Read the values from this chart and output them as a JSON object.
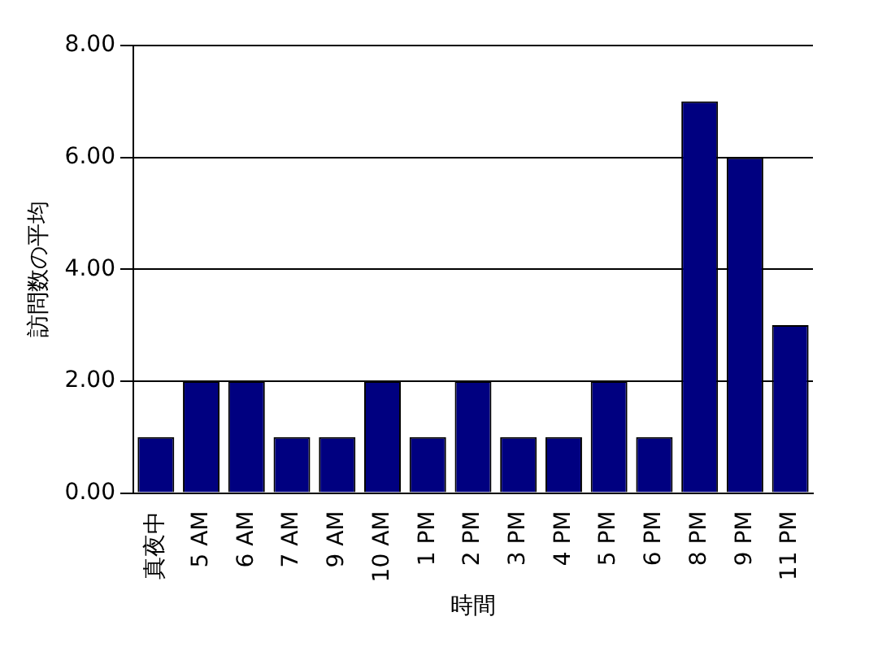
{
  "chart_data": {
    "type": "bar",
    "xlabel": "時間",
    "ylabel": "訪問数の平均",
    "categories": [
      "真夜中",
      "5 AM",
      "6 AM",
      "7 AM",
      "9 AM",
      "10 AM",
      "1 PM",
      "2 PM",
      "3 PM",
      "4 PM",
      "5 PM",
      "6 PM",
      "8 PM",
      "9 PM",
      "11 PM"
    ],
    "values": [
      1,
      2,
      2,
      1,
      1,
      2,
      1,
      2,
      1,
      1,
      2,
      1,
      7,
      6,
      3
    ],
    "color": "#000080",
    "ylim": [
      0,
      8
    ],
    "yticks": [
      {
        "value": 0,
        "label": "0.00"
      },
      {
        "value": 2,
        "label": "2.00"
      },
      {
        "value": 4,
        "label": "4.00"
      },
      {
        "value": 6,
        "label": "6.00"
      },
      {
        "value": 8,
        "label": "8.00"
      }
    ],
    "grid": "y",
    "legend": false
  }
}
